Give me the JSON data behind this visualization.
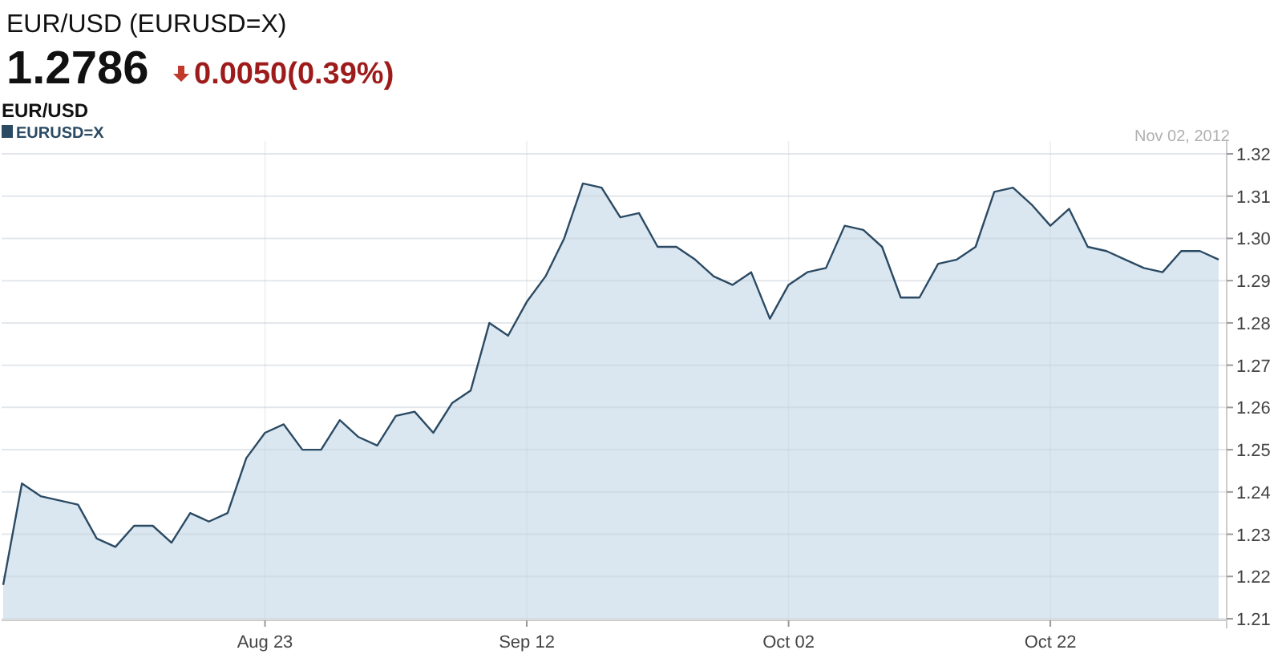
{
  "chart_data": {
    "type": "area",
    "title": "EUR/USD (EURUSD=X)",
    "subtitle": "EUR/USD",
    "annotations": [
      "1.2786",
      "0.0050(0.39%)",
      "Nov 02, 2012"
    ],
    "categories": [
      null,
      null,
      null,
      null,
      null,
      null,
      null,
      null,
      null,
      null,
      null,
      null,
      null,
      null,
      "Aug 23",
      null,
      null,
      null,
      null,
      null,
      null,
      null,
      null,
      null,
      null,
      null,
      null,
      null,
      "Sep 12",
      null,
      null,
      null,
      null,
      null,
      null,
      null,
      null,
      null,
      null,
      null,
      null,
      null,
      "Oct 02",
      null,
      null,
      null,
      null,
      null,
      null,
      null,
      null,
      null,
      null,
      null,
      null,
      null,
      "Oct 22",
      null,
      null,
      null,
      null,
      null,
      null,
      null,
      null,
      null
    ],
    "series": [
      {
        "name": "EURUSD=X",
        "color": "#2b4a63",
        "values": [
          1.218,
          1.242,
          1.239,
          1.238,
          1.237,
          1.229,
          1.227,
          1.232,
          1.232,
          1.228,
          1.235,
          1.233,
          1.235,
          1.248,
          1.254,
          1.256,
          1.25,
          1.25,
          1.257,
          1.253,
          1.251,
          1.258,
          1.259,
          1.254,
          1.261,
          1.264,
          1.28,
          1.277,
          1.285,
          1.291,
          1.3,
          1.313,
          1.312,
          1.305,
          1.306,
          1.298,
          1.298,
          1.295,
          1.291,
          1.289,
          1.292,
          1.281,
          1.289,
          1.292,
          1.293,
          1.303,
          1.302,
          1.298,
          1.286,
          1.286,
          1.294,
          1.295,
          1.298,
          1.311,
          1.312,
          1.308,
          1.303,
          1.307,
          1.298,
          1.297,
          1.295,
          1.293,
          1.292,
          1.297,
          1.297,
          1.295
        ]
      }
    ],
    "ylim": [
      1.21,
      1.32
    ],
    "yticks": [
      1.21,
      1.22,
      1.23,
      1.24,
      1.25,
      1.26,
      1.27,
      1.28,
      1.29,
      {
        "value": 1.3,
        "label": "1.30"
      },
      1.31,
      1.32
    ],
    "grid": true,
    "legend": "top left"
  }
}
